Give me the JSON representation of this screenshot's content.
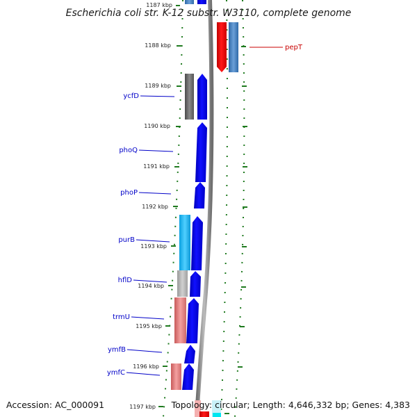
{
  "title": "Escherichia coli str. K-12 substr. W3110, complete genome",
  "accession": "Accession: AC_000091",
  "summary": "Topology: circular; Length: 4,646,332 bp; Genes: 4,383",
  "colors": {
    "tick": "#1f7a1f",
    "backbone": "#8c8c8c",
    "label_left": "#0000c8",
    "label_right": "#c80000",
    "forward_blue": "#0000e6"
  },
  "scale": {
    "unit": "kbp",
    "ticks": [
      "1187 kbp",
      "1188 kbp",
      "1189 kbp",
      "1190 kbp",
      "1191 kbp",
      "1192 kbp",
      "1193 kbp",
      "1194 kbp",
      "1195 kbp",
      "1196 kbp",
      "1197 kbp"
    ]
  },
  "genes": [
    {
      "name": "pepT",
      "side": "right",
      "color": "#c80000"
    },
    {
      "name": "ycfD",
      "side": "left",
      "color": "#0000c8"
    },
    {
      "name": "phoQ",
      "side": "left",
      "color": "#0000c8"
    },
    {
      "name": "phoP",
      "side": "left",
      "color": "#0000c8"
    },
    {
      "name": "purB",
      "side": "left",
      "color": "#0000c8"
    },
    {
      "name": "hflD",
      "side": "left",
      "color": "#0000c8"
    },
    {
      "name": "trmU",
      "side": "left",
      "color": "#0000c8"
    },
    {
      "name": "ymfB",
      "side": "left",
      "color": "#0000c8"
    },
    {
      "name": "ymfC",
      "side": "left",
      "color": "#0000c8"
    }
  ],
  "track_colors": {
    "pepT": "#ee0000",
    "ycfD": "#666666",
    "purB": "#1eb4f0",
    "hflD": "#b4b4b4",
    "trmU": "#e87878",
    "ymfC": "#e87878",
    "bottom_red": "#ee0000",
    "bottom_cyan": "#00e6f0",
    "bottom_pink": "#f0a0a0",
    "top_partial": "#4a86c8"
  }
}
